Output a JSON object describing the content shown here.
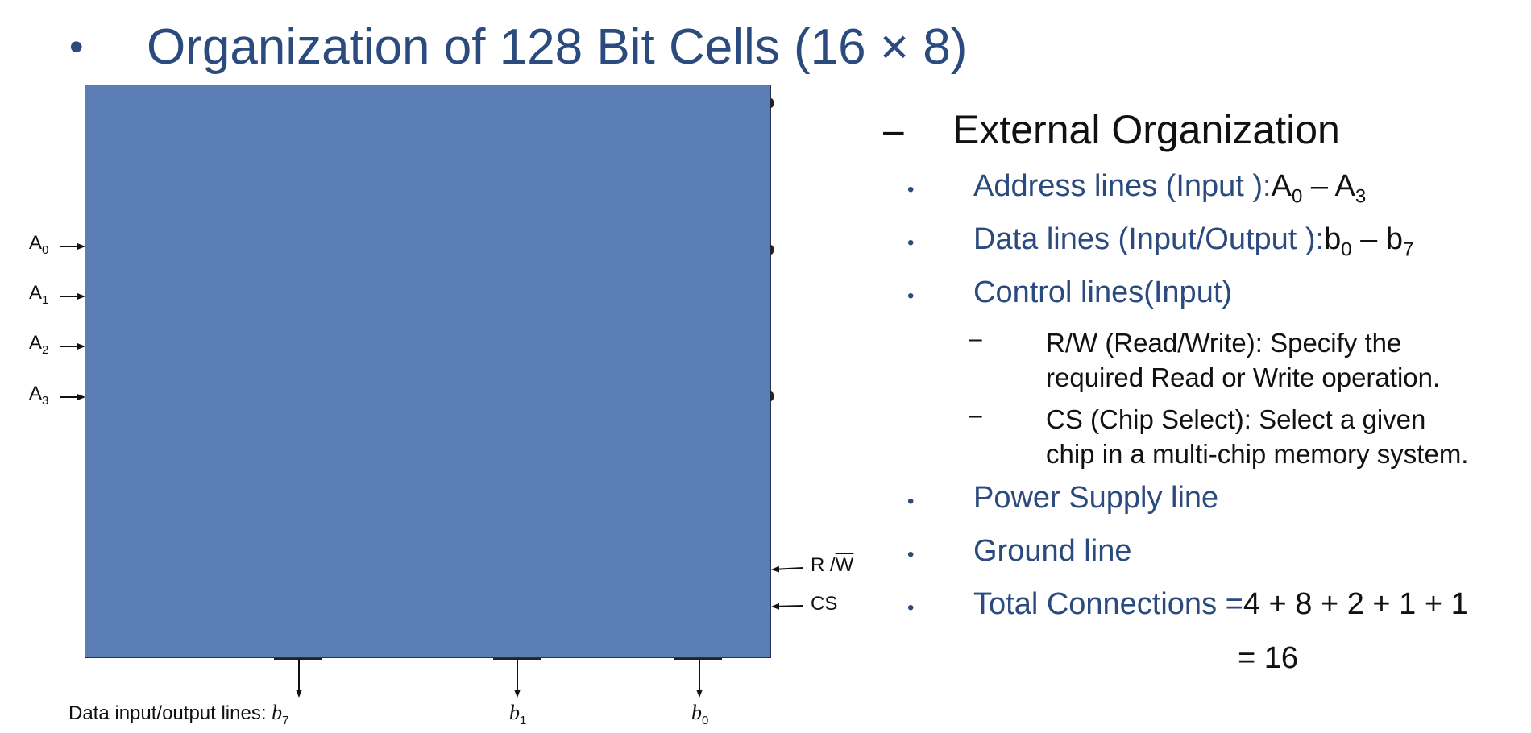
{
  "slide": {
    "title_prefix": "Organization of 128 Bit Cells (16 ",
    "title_times": "×",
    "title_suffix": " 8)"
  },
  "diagram": {
    "address_lines": [
      {
        "letter": "A",
        "index": "0"
      },
      {
        "letter": "A",
        "index": "1"
      },
      {
        "letter": "A",
        "index": "2"
      },
      {
        "letter": "A",
        "index": "3"
      }
    ],
    "control_lines": {
      "rw_r": "R /",
      "rw_w": "W",
      "cs": "CS"
    },
    "data_lines": {
      "caption": "Data input/output lines: ",
      "b7_letter": "b",
      "b7_index": "7",
      "b1_letter": "b",
      "b1_index": "1",
      "b0_letter": "b",
      "b0_index": "0"
    }
  },
  "external": {
    "heading_dash": "–",
    "heading": "External Organization",
    "address": {
      "label": "Address lines (Input ): ",
      "v1": "A",
      "s1": "0",
      "mid": " – ",
      "v2": "A",
      "s2": "3"
    },
    "data": {
      "label": "Data lines (Input/Output ): ",
      "v1": "b",
      "s1": "0",
      "mid": " – ",
      "v2": "b",
      "s2": "7"
    },
    "control": {
      "label": "Control lines(Input)"
    },
    "rw_desc": [
      "R/W (Read/Write): Specify the",
      "required Read or Write operation."
    ],
    "cs_desc": [
      "CS (Chip Select): Select a given",
      "chip in a multi-chip memory system."
    ],
    "power": "Power Supply line",
    "ground": "Ground line",
    "total_label": "Total Connections = ",
    "total_expr": "4 + 8 + 2 + 1 + 1",
    "total_result": "= 16"
  }
}
